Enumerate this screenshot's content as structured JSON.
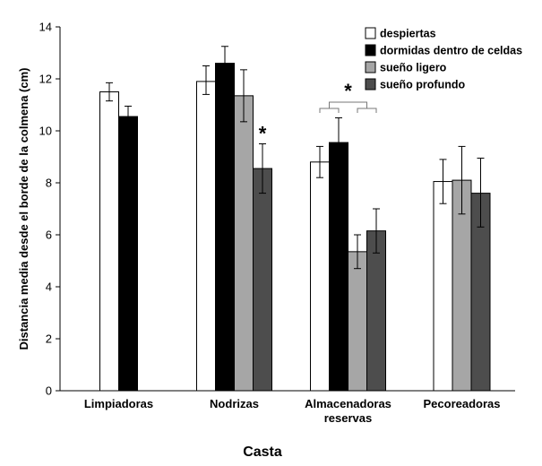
{
  "chart_data": {
    "type": "bar",
    "xlabel": "Casta",
    "ylabel": "Distancia media desde el borde de la colmena (cm)",
    "ylim": [
      0,
      14
    ],
    "yticks": [
      0,
      2,
      4,
      6,
      8,
      10,
      12,
      14
    ],
    "grid": false,
    "legend_position": "top-right",
    "categories": [
      {
        "lines": [
          "Limpiadoras"
        ]
      },
      {
        "lines": [
          "Nodrizas"
        ]
      },
      {
        "lines": [
          "Almacenadoras",
          "reservas"
        ]
      },
      {
        "lines": [
          "Pecoreadoras"
        ]
      }
    ],
    "series": [
      {
        "name": "despiertas",
        "color": "#ffffff",
        "values": [
          11.5,
          11.9,
          8.8,
          8.05
        ],
        "err_low": [
          11.15,
          11.4,
          8.2,
          7.2
        ],
        "err_high": [
          11.85,
          12.5,
          9.4,
          8.9
        ]
      },
      {
        "name": "dormidas dentro de celdas",
        "color": "#000000",
        "values": [
          10.55,
          12.6,
          9.55,
          null
        ],
        "err_low": [
          10.2,
          11.95,
          8.6,
          null
        ],
        "err_high": [
          10.95,
          13.25,
          10.5,
          null
        ]
      },
      {
        "name": "sueño ligero",
        "color": "#a6a6a6",
        "values": [
          null,
          11.35,
          5.35,
          8.1
        ],
        "err_low": [
          null,
          10.35,
          4.7,
          6.8
        ],
        "err_high": [
          null,
          12.35,
          6.0,
          9.4
        ]
      },
      {
        "name": "sueño profundo",
        "color": "#4d4d4d",
        "values": [
          null,
          8.55,
          6.15,
          7.6
        ],
        "err_low": [
          null,
          7.6,
          5.3,
          6.3
        ],
        "err_high": [
          null,
          9.5,
          7.0,
          8.95
        ]
      }
    ],
    "annotations": [
      {
        "text": "*",
        "category": "Nodrizas",
        "series": "sueño profundo"
      },
      {
        "text": "*",
        "category": "Almacenadoras reservas",
        "type": "bracket"
      }
    ]
  }
}
